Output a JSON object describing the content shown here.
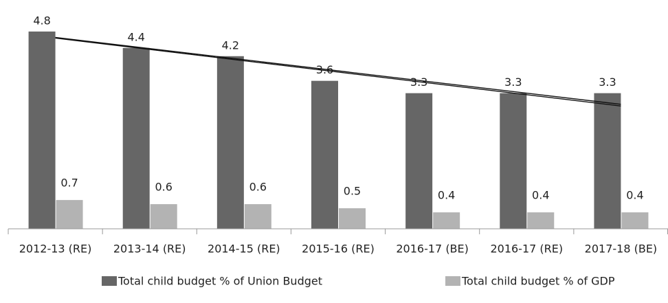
{
  "chart_data": {
    "type": "bar",
    "categories": [
      "2012-13 (RE)",
      "2013-14 (RE)",
      "2014-15 (RE)",
      "2015-16 (RE)",
      "2016-17 (BE)",
      "2016-17 (RE)",
      "2017-18 (BE)"
    ],
    "series": [
      {
        "name": "Total child budget % of Union Budget",
        "color": "#666666",
        "values": [
          4.8,
          4.4,
          4.2,
          3.6,
          3.3,
          3.3,
          3.3
        ]
      },
      {
        "name": "Total child budget % of GDP",
        "color": "#b3b3b3",
        "values": [
          0.7,
          0.6,
          0.6,
          0.5,
          0.4,
          0.4,
          0.4
        ]
      }
    ],
    "ylim": [
      0,
      5.5
    ],
    "trendline": true,
    "legend": "bottom"
  }
}
